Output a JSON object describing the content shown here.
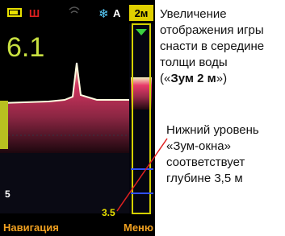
{
  "status": {
    "mode": "Ш",
    "auto": "A",
    "zoom": "2м"
  },
  "depth": "6.1",
  "scale_label": "5",
  "zoom_bottom": "3.5",
  "softkeys": {
    "left": "Навигация",
    "right": "Меню"
  },
  "callouts": [
    {
      "lines": [
        "Увеличение",
        "отображения игры",
        "снасти в середине",
        "толщи воды"
      ],
      "last": [
        "(«",
        "Зум 2 м",
        "»)"
      ]
    },
    {
      "lines": [
        "Нижний уровень",
        "«Зум-окна»",
        "соответствует",
        "глубине 3,5 м"
      ]
    }
  ]
}
